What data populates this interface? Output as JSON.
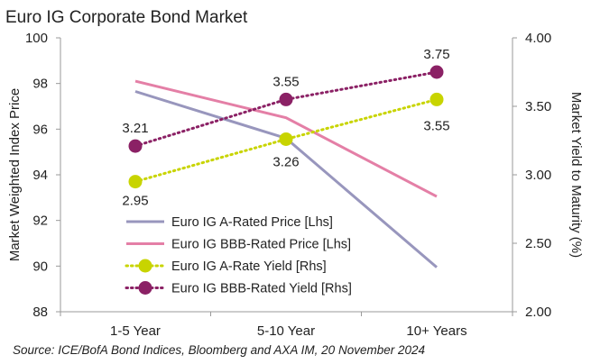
{
  "chart_data": {
    "type": "line",
    "title": "Euro IG Corporate Bond Market",
    "categories": [
      "1-5 Year",
      "5-10 Year",
      "10+ Years"
    ],
    "ylabel_left": "Market Weighted Index Price",
    "ylabel_right": "Market Yield to Maturity (%)",
    "ylim_left": [
      88,
      100
    ],
    "yticks_left": [
      "88",
      "90",
      "92",
      "94",
      "96",
      "98",
      "100"
    ],
    "ylim_right": [
      2.0,
      4.0
    ],
    "yticks_right": [
      "2.00",
      "2.50",
      "3.00",
      "3.50",
      "4.00"
    ],
    "grid": false,
    "legend_position": "lower-left",
    "series": [
      {
        "name": "Euro IG A-Rated Price [Lhs]",
        "axis": "left",
        "style": "solid",
        "color": "#9896bd",
        "values": [
          97.65,
          95.6,
          89.95
        ]
      },
      {
        "name": "Euro IG BBB-Rated Price [Lhs]",
        "axis": "left",
        "style": "solid",
        "color": "#e47fa6",
        "values": [
          98.1,
          96.5,
          93.05
        ]
      },
      {
        "name": "Euro IG A-Rate Yield [Rhs]",
        "axis": "right",
        "style": "dotted-markers",
        "color": "#c8d400",
        "values": [
          2.95,
          3.26,
          3.55
        ],
        "data_labels": [
          "2.95",
          "3.26",
          "3.55"
        ]
      },
      {
        "name": "Euro IG BBB-Rated Yield [Rhs]",
        "axis": "right",
        "style": "dotted-markers",
        "color": "#8b2165",
        "values": [
          3.21,
          3.55,
          3.75
        ],
        "data_labels": [
          "3.21",
          "3.55",
          "3.75"
        ]
      }
    ],
    "source": "Source: ICE/BofA Bond Indices, Bloomberg and AXA IM, 20 November  2024"
  }
}
